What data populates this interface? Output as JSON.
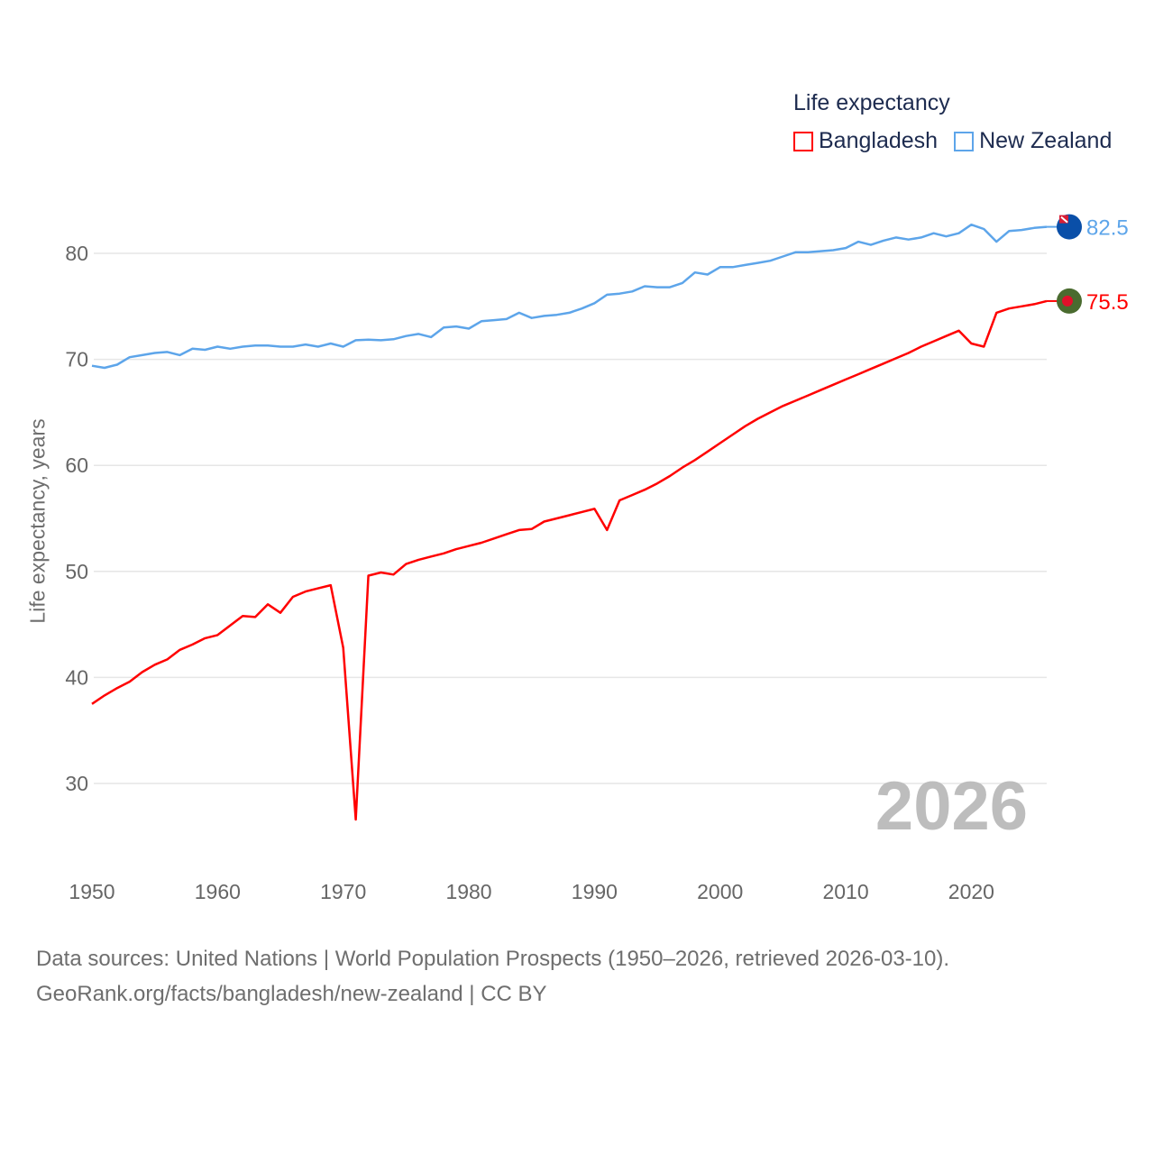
{
  "chart_data": {
    "type": "line",
    "title": "Life expectancy",
    "xlabel": "",
    "ylabel": "Life expectancy, years",
    "xlim": [
      1950,
      2026
    ],
    "ylim": [
      23,
      88
    ],
    "xticks": [
      "1950",
      "1960",
      "1970",
      "1980",
      "1990",
      "2000",
      "2010",
      "2020"
    ],
    "yticks": [
      "30",
      "40",
      "50",
      "60",
      "70",
      "80"
    ],
    "grid": true,
    "legend_position": "top-right",
    "year_label": "2026",
    "x_start": 1950,
    "series": [
      {
        "name": "Bangladesh",
        "color": "#ff0000",
        "end_label": "75.5",
        "values": [
          37.5,
          38.3,
          39.0,
          39.6,
          40.5,
          41.2,
          41.7,
          42.6,
          43.1,
          43.7,
          44.0,
          44.9,
          45.8,
          45.7,
          46.9,
          46.1,
          47.6,
          48.1,
          48.4,
          48.7,
          42.8,
          26.6,
          49.6,
          49.9,
          49.7,
          50.7,
          51.1,
          51.4,
          51.7,
          52.1,
          52.4,
          52.7,
          53.1,
          53.5,
          53.9,
          54.0,
          54.7,
          55.0,
          55.3,
          55.6,
          55.9,
          53.9,
          56.7,
          57.2,
          57.7,
          58.3,
          59.0,
          59.8,
          60.5,
          61.3,
          62.1,
          62.9,
          63.7,
          64.4,
          65.0,
          65.6,
          66.1,
          66.6,
          67.1,
          67.6,
          68.1,
          68.6,
          69.1,
          69.6,
          70.1,
          70.6,
          71.2,
          71.7,
          72.2,
          72.7,
          71.5,
          71.2,
          74.4,
          74.8,
          75.0,
          75.2,
          75.5
        ]
      },
      {
        "name": "New Zealand",
        "color": "#5da5ea",
        "end_label": "82.5",
        "values": [
          69.4,
          69.2,
          69.5,
          70.2,
          70.4,
          70.6,
          70.7,
          70.4,
          71.0,
          70.9,
          71.2,
          71.0,
          71.2,
          71.3,
          71.3,
          71.2,
          71.2,
          71.4,
          71.2,
          71.5,
          71.2,
          71.8,
          71.85,
          71.8,
          71.9,
          72.2,
          72.4,
          72.1,
          73.0,
          73.1,
          72.9,
          73.6,
          73.7,
          73.8,
          74.4,
          73.9,
          74.1,
          74.2,
          74.4,
          74.8,
          75.3,
          76.1,
          76.2,
          76.4,
          76.9,
          76.8,
          76.8,
          77.2,
          78.2,
          78.0,
          78.7,
          78.7,
          78.9,
          79.1,
          79.3,
          79.7,
          80.1,
          80.1,
          80.2,
          80.3,
          80.5,
          81.1,
          80.8,
          81.2,
          81.5,
          81.3,
          81.5,
          81.9,
          81.6,
          81.9,
          82.7,
          82.3,
          81.1,
          82.1,
          82.2,
          82.4,
          82.5
        ]
      }
    ]
  },
  "footer": {
    "line1": "Data sources: United Nations | World Population Prospects (1950–2026, retrieved 2026-03-10).",
    "line2": "GeoRank.org/facts/bangladesh/new-zealand | CC BY"
  }
}
